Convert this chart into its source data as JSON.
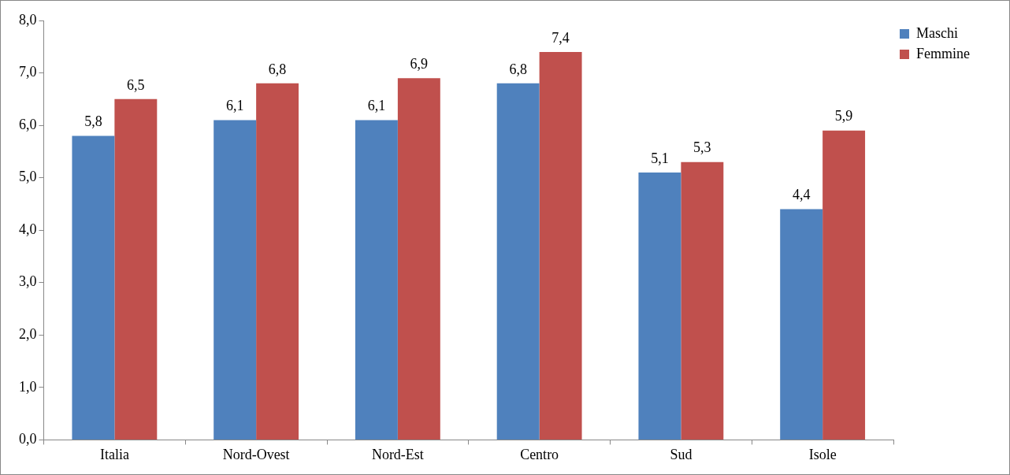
{
  "chart_data": {
    "type": "bar",
    "categories": [
      "Italia",
      "Nord-Ovest",
      "Nord-Est",
      "Centro",
      "Sud",
      "Isole"
    ],
    "series": [
      {
        "name": "Maschi",
        "color": "#4f81bd",
        "values": [
          5.8,
          6.1,
          6.1,
          6.8,
          5.1,
          4.4
        ],
        "value_labels": [
          "5,8",
          "6,1",
          "6,1",
          "6,8",
          "5,1",
          "4,4"
        ]
      },
      {
        "name": "Femmine",
        "color": "#c0504d",
        "values": [
          6.5,
          6.8,
          6.9,
          7.4,
          5.3,
          5.9
        ],
        "value_labels": [
          "6,5",
          "6,8",
          "6,9",
          "7,4",
          "5,3",
          "5,9"
        ]
      }
    ],
    "ylim": [
      0,
      8
    ],
    "yticks": [
      {
        "value": 0,
        "label": "0,0"
      },
      {
        "value": 1,
        "label": "1,0"
      },
      {
        "value": 2,
        "label": "2,0"
      },
      {
        "value": 3,
        "label": "3,0"
      },
      {
        "value": 4,
        "label": "4,0"
      },
      {
        "value": 5,
        "label": "5,0"
      },
      {
        "value": 6,
        "label": "6,0"
      },
      {
        "value": 7,
        "label": "7,0"
      },
      {
        "value": 8,
        "label": "8,0"
      }
    ],
    "grid": false,
    "legend": "top right"
  }
}
